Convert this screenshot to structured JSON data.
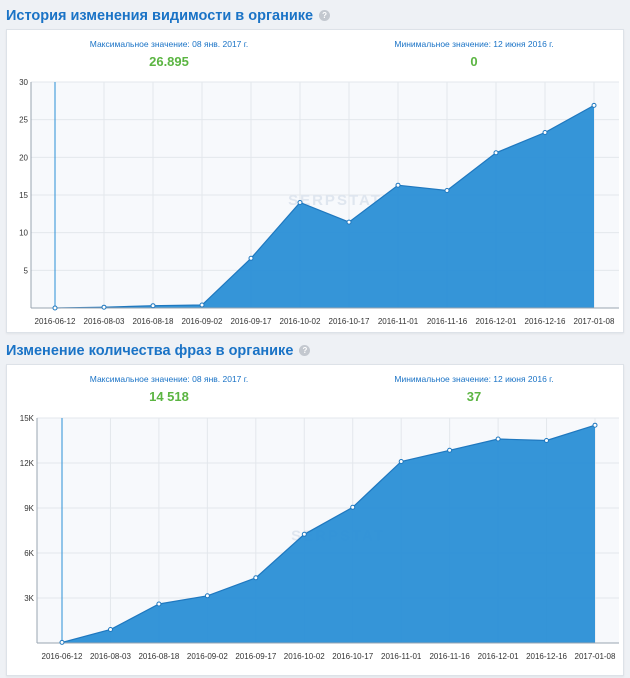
{
  "chart_data": [
    {
      "type": "area",
      "title": "История изменения видимости в органике",
      "max_label": "Максимальное значение: 08 янв. 2017 г.",
      "max_value": "26.895",
      "min_label": "Минимальное значение: 12 июня 2016 г.",
      "min_value": "0",
      "x": [
        "2016-06-12",
        "2016-08-03",
        "2016-08-18",
        "2016-09-02",
        "2016-09-17",
        "2016-10-02",
        "2016-10-17",
        "2016-11-01",
        "2016-11-16",
        "2016-12-01",
        "2016-12-16",
        "2017-01-08"
      ],
      "values": [
        0,
        0.1,
        0.3,
        0.4,
        6.6,
        14.0,
        11.4,
        16.3,
        15.6,
        20.6,
        23.3,
        26.9
      ],
      "ylim": [
        0,
        30
      ],
      "yticks": [
        5,
        10,
        15,
        20,
        25,
        30
      ],
      "ytick_labels": [
        "5",
        "10",
        "15",
        "20",
        "25",
        "30"
      ],
      "grid": true,
      "color": "#2a8fd6"
    },
    {
      "type": "area",
      "title": "Изменение количества фраз в органике",
      "max_label": "Максимальное значение: 08 янв. 2017 г.",
      "max_value": "14 518",
      "min_label": "Минимальное значение: 12 июня 2016 г.",
      "min_value": "37",
      "x": [
        "2016-06-12",
        "2016-08-03",
        "2016-08-18",
        "2016-09-02",
        "2016-09-17",
        "2016-10-02",
        "2016-10-17",
        "2016-11-01",
        "2016-11-16",
        "2016-12-01",
        "2016-12-16",
        "2017-01-08"
      ],
      "values": [
        37,
        900,
        2600,
        3150,
        4350,
        7250,
        9050,
        12100,
        12850,
        13600,
        13500,
        14518
      ],
      "ylim": [
        0,
        15000
      ],
      "yticks": [
        3000,
        6000,
        9000,
        12000,
        15000
      ],
      "ytick_labels": [
        "3K",
        "6K",
        "9K",
        "12K",
        "15K"
      ],
      "grid": true,
      "color": "#2a8fd6"
    }
  ],
  "watermark": "SERPSTAT",
  "help_icon": "question-circle-icon",
  "colors": {
    "accent": "#1a73c6",
    "value": "#5bb542",
    "area": "#2a8fd6"
  }
}
